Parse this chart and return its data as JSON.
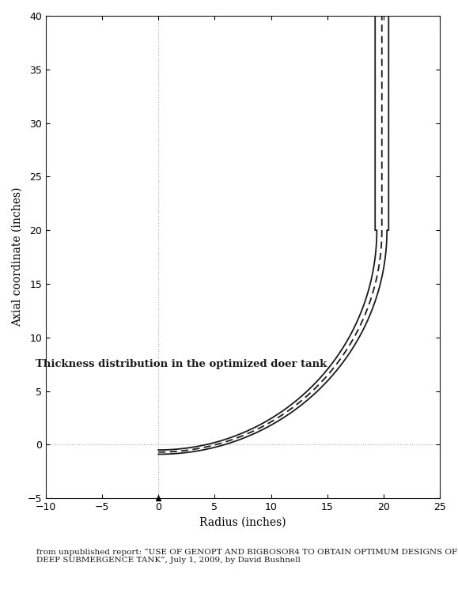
{
  "title": "Thickness distribution in the optimized doer tank",
  "xlabel": "Radius (inches)",
  "ylabel": "Axial coordinate (inches)",
  "xlim": [
    -10,
    25
  ],
  "ylim": [
    -5,
    40
  ],
  "xticks": [
    -10,
    -5,
    0,
    5,
    10,
    15,
    20,
    25
  ],
  "yticks": [
    -5,
    0,
    5,
    10,
    15,
    20,
    25,
    30,
    35,
    40
  ],
  "background_color": "#ffffff",
  "annotation_text": "from unpublished report: “USE OF GENOPT AND BIGBOSOR4 TO OBTAIN OPTIMUM DESIGNS OF A\nDEEP SUBMERGENCE TANK”, July 1, 2009, by David Bushnell",
  "ref_line_color": "#aaaaaa",
  "curve_color": "#1a1a1a",
  "step_y": 20.0,
  "r_outer_dome_end": 20.3,
  "r_inner_dome_end": 19.4,
  "r_mid_dome_end": 19.85,
  "r_outer_cyl": 20.45,
  "r_inner_cyl": 19.25,
  "r_mid_cyl": 19.85,
  "cylinder_y_top": 40.0,
  "y_bot_outer": -0.9,
  "y_bot_inner": -0.5,
  "y_bot_mid": -0.7
}
